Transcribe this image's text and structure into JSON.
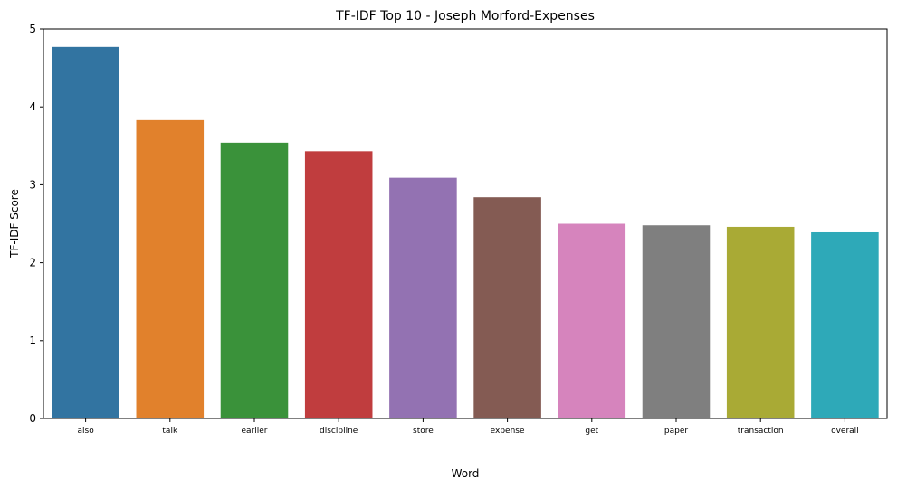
{
  "chart_data": {
    "type": "bar",
    "title": "TF-IDF Top 10 - Joseph Morford-Expenses",
    "xlabel": "Word",
    "ylabel": "TF-IDF Score",
    "ylim": [
      0,
      5
    ],
    "yticks": [
      "0",
      "1",
      "2",
      "3",
      "4",
      "5"
    ],
    "grid": false,
    "categories": [
      "also",
      "talk",
      "earlier",
      "discipline",
      "store",
      "expense",
      "get",
      "paper",
      "transaction",
      "overall"
    ],
    "values": [
      4.77,
      3.83,
      3.54,
      3.43,
      3.09,
      2.84,
      2.5,
      2.48,
      2.46,
      2.39
    ],
    "colors": [
      "#3274a1",
      "#e1812c",
      "#3a923a",
      "#c03d3e",
      "#9372b2",
      "#845b53",
      "#d684bd",
      "#7f7f7f",
      "#a9aa35",
      "#2ea9b8"
    ]
  }
}
